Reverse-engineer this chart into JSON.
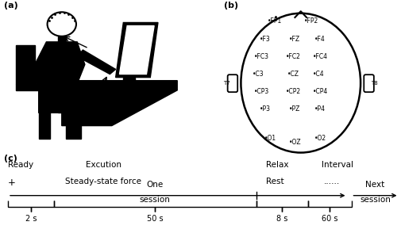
{
  "fig_width": 5.05,
  "fig_height": 2.99,
  "dpi": 100,
  "bg_color": "#ffffff",
  "label_a": "(a)",
  "label_b": "(b)",
  "label_c": "(c)"
}
